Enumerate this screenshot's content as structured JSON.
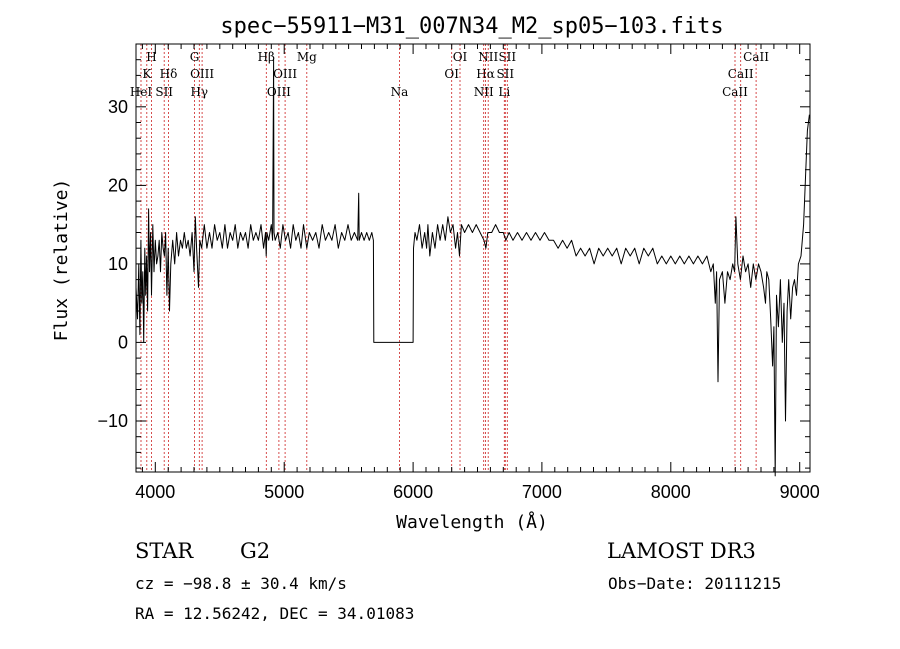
{
  "chart_data": {
    "type": "line",
    "title": "spec−55911−M31_007N34_M2_sp05−103.fits",
    "xlabel": "Wavelength (Å)",
    "ylabel": "Flux (relative)",
    "xlim": [
      3850,
      9080
    ],
    "ylim": [
      -16.5,
      38
    ],
    "x_ticks": [
      4000,
      5000,
      6000,
      7000,
      8000,
      9000
    ],
    "x_tick_labels": [
      "4000",
      "5000",
      "6000",
      "7000",
      "8000",
      "9000"
    ],
    "y_ticks": [
      -10,
      0,
      10,
      20,
      30
    ],
    "y_tick_labels": [
      "−10",
      "0",
      "10",
      "20",
      "30"
    ],
    "line_color": "#000000",
    "marker_color": "#cc2222",
    "spectral_lines": [
      {
        "label": "H",
        "wavelength": 3970,
        "row": 0
      },
      {
        "label": "K",
        "wavelength": 3934,
        "row": 1
      },
      {
        "label": "HeI",
        "wavelength": 3889,
        "row": 2
      },
      {
        "label": "SII",
        "wavelength": 4069,
        "row": 2
      },
      {
        "label": "Hδ",
        "wavelength": 4102,
        "row": 1
      },
      {
        "label": "G",
        "wavelength": 4304,
        "row": 0
      },
      {
        "label": "OIII",
        "wavelength": 4363,
        "row": 1
      },
      {
        "label": "Hγ",
        "wavelength": 4341,
        "row": 2
      },
      {
        "label": "Hβ",
        "wavelength": 4861,
        "row": 0
      },
      {
        "label": "OIII",
        "wavelength": 5007,
        "row": 1
      },
      {
        "label": "OIII",
        "wavelength": 4959,
        "row": 2
      },
      {
        "label": "Mg",
        "wavelength": 5175,
        "row": 0
      },
      {
        "label": "Na",
        "wavelength": 5894,
        "row": 2
      },
      {
        "label": "OI",
        "wavelength": 6364,
        "row": 0
      },
      {
        "label": "OI",
        "wavelength": 6300,
        "row": 1
      },
      {
        "label": "NII",
        "wavelength": 6583,
        "row": 0
      },
      {
        "label": "SII",
        "wavelength": 6731,
        "row": 0
      },
      {
        "label": "Hα",
        "wavelength": 6563,
        "row": 1
      },
      {
        "label": "SII",
        "wavelength": 6716,
        "row": 1
      },
      {
        "label": "NII",
        "wavelength": 6548,
        "row": 2
      },
      {
        "label": "Li",
        "wavelength": 6708,
        "row": 2
      },
      {
        "label": "CaII",
        "wavelength": 8662,
        "row": 0
      },
      {
        "label": "CaII",
        "wavelength": 8542,
        "row": 1
      },
      {
        "label": "CaII",
        "wavelength": 8498,
        "row": 2
      }
    ],
    "series": [
      {
        "name": "flux",
        "points": [
          [
            3850,
            7
          ],
          [
            3862,
            3
          ],
          [
            3872,
            10
          ],
          [
            3880,
            1
          ],
          [
            3888,
            13
          ],
          [
            3895,
            5
          ],
          [
            3903,
            9
          ],
          [
            3910,
            0
          ],
          [
            3918,
            12
          ],
          [
            3925,
            6
          ],
          [
            3932,
            11
          ],
          [
            3940,
            4
          ],
          [
            3948,
            17
          ],
          [
            3955,
            9
          ],
          [
            3963,
            14
          ],
          [
            3970,
            6
          ],
          [
            3980,
            15
          ],
          [
            3990,
            9
          ],
          [
            4000,
            13
          ],
          [
            4010,
            10
          ],
          [
            4020,
            11
          ],
          [
            4030,
            13
          ],
          [
            4040,
            9
          ],
          [
            4050,
            14
          ],
          [
            4060,
            12
          ],
          [
            4070,
            11
          ],
          [
            4080,
            14
          ],
          [
            4090,
            6
          ],
          [
            4100,
            12
          ],
          [
            4110,
            4
          ],
          [
            4120,
            10
          ],
          [
            4135,
            13
          ],
          [
            4150,
            10
          ],
          [
            4165,
            14
          ],
          [
            4180,
            11
          ],
          [
            4195,
            13
          ],
          [
            4210,
            12
          ],
          [
            4225,
            14
          ],
          [
            4240,
            12
          ],
          [
            4255,
            13
          ],
          [
            4270,
            11
          ],
          [
            4285,
            14
          ],
          [
            4300,
            9
          ],
          [
            4310,
            16
          ],
          [
            4320,
            12
          ],
          [
            4335,
            7
          ],
          [
            4345,
            13
          ],
          [
            4360,
            12
          ],
          [
            4380,
            15
          ],
          [
            4400,
            12
          ],
          [
            4420,
            14
          ],
          [
            4440,
            12
          ],
          [
            4460,
            15
          ],
          [
            4480,
            13
          ],
          [
            4500,
            14
          ],
          [
            4520,
            12
          ],
          [
            4540,
            15
          ],
          [
            4560,
            12
          ],
          [
            4580,
            14
          ],
          [
            4600,
            13
          ],
          [
            4620,
            15
          ],
          [
            4640,
            12
          ],
          [
            4660,
            14
          ],
          [
            4680,
            13
          ],
          [
            4700,
            14
          ],
          [
            4720,
            12
          ],
          [
            4740,
            15
          ],
          [
            4760,
            13
          ],
          [
            4780,
            14
          ],
          [
            4800,
            13
          ],
          [
            4820,
            15
          ],
          [
            4840,
            12
          ],
          [
            4855,
            14
          ],
          [
            4860,
            11
          ],
          [
            4866,
            14
          ],
          [
            4880,
            13
          ],
          [
            4900,
            15
          ],
          [
            4910,
            13
          ],
          [
            4918,
            36
          ],
          [
            4921,
            14
          ],
          [
            4930,
            13
          ],
          [
            4950,
            14
          ],
          [
            4970,
            12
          ],
          [
            4990,
            15
          ],
          [
            5010,
            13
          ],
          [
            5030,
            14
          ],
          [
            5050,
            12
          ],
          [
            5070,
            15
          ],
          [
            5090,
            13
          ],
          [
            5110,
            14
          ],
          [
            5130,
            12
          ],
          [
            5150,
            15
          ],
          [
            5175,
            12
          ],
          [
            5195,
            14
          ],
          [
            5220,
            13
          ],
          [
            5245,
            14
          ],
          [
            5270,
            12
          ],
          [
            5295,
            15
          ],
          [
            5320,
            13
          ],
          [
            5345,
            14
          ],
          [
            5370,
            13
          ],
          [
            5395,
            15
          ],
          [
            5420,
            12
          ],
          [
            5445,
            14
          ],
          [
            5470,
            13
          ],
          [
            5495,
            15
          ],
          [
            5520,
            13
          ],
          [
            5545,
            14
          ],
          [
            5570,
            13
          ],
          [
            5578,
            19
          ],
          [
            5582,
            13
          ],
          [
            5600,
            14
          ],
          [
            5620,
            13
          ],
          [
            5640,
            14
          ],
          [
            5660,
            13
          ],
          [
            5680,
            14
          ],
          [
            5692,
            13
          ],
          [
            5695,
            0
          ],
          [
            6000,
            0
          ],
          [
            6003,
            12
          ],
          [
            6015,
            14
          ],
          [
            6030,
            13
          ],
          [
            6050,
            15
          ],
          [
            6070,
            12
          ],
          [
            6090,
            14
          ],
          [
            6105,
            12
          ],
          [
            6115,
            15
          ],
          [
            6130,
            11
          ],
          [
            6150,
            14
          ],
          [
            6170,
            12
          ],
          [
            6190,
            15
          ],
          [
            6210,
            13
          ],
          [
            6230,
            15
          ],
          [
            6250,
            13
          ],
          [
            6270,
            16
          ],
          [
            6290,
            14
          ],
          [
            6310,
            15
          ],
          [
            6330,
            12
          ],
          [
            6345,
            14
          ],
          [
            6360,
            11
          ],
          [
            6375,
            15
          ],
          [
            6400,
            14
          ],
          [
            6430,
            15
          ],
          [
            6460,
            14
          ],
          [
            6490,
            15
          ],
          [
            6520,
            14
          ],
          [
            6550,
            13
          ],
          [
            6565,
            12
          ],
          [
            6580,
            14
          ],
          [
            6610,
            14
          ],
          [
            6640,
            15
          ],
          [
            6670,
            14
          ],
          [
            6700,
            14
          ],
          [
            6720,
            13
          ],
          [
            6745,
            14
          ],
          [
            6775,
            13
          ],
          [
            6810,
            14
          ],
          [
            6845,
            13
          ],
          [
            6880,
            14
          ],
          [
            6915,
            13
          ],
          [
            6950,
            14
          ],
          [
            6985,
            13
          ],
          [
            7020,
            14
          ],
          [
            7055,
            13
          ],
          [
            7090,
            13
          ],
          [
            7125,
            12
          ],
          [
            7160,
            13
          ],
          [
            7195,
            12
          ],
          [
            7230,
            13
          ],
          [
            7265,
            11
          ],
          [
            7300,
            12
          ],
          [
            7335,
            11
          ],
          [
            7370,
            12
          ],
          [
            7405,
            10
          ],
          [
            7440,
            12
          ],
          [
            7475,
            11
          ],
          [
            7510,
            12
          ],
          [
            7545,
            11
          ],
          [
            7580,
            12
          ],
          [
            7615,
            10
          ],
          [
            7650,
            12
          ],
          [
            7685,
            11
          ],
          [
            7720,
            12
          ],
          [
            7755,
            10
          ],
          [
            7790,
            12
          ],
          [
            7825,
            11
          ],
          [
            7860,
            12
          ],
          [
            7895,
            10
          ],
          [
            7930,
            11
          ],
          [
            7965,
            10
          ],
          [
            8000,
            11
          ],
          [
            8035,
            10
          ],
          [
            8070,
            11
          ],
          [
            8105,
            10
          ],
          [
            8140,
            11
          ],
          [
            8175,
            10
          ],
          [
            8210,
            11
          ],
          [
            8245,
            10
          ],
          [
            8280,
            11
          ],
          [
            8310,
            9
          ],
          [
            8330,
            10
          ],
          [
            8345,
            5
          ],
          [
            8355,
            9
          ],
          [
            8366,
            -5
          ],
          [
            8378,
            8
          ],
          [
            8400,
            9
          ],
          [
            8420,
            5
          ],
          [
            8440,
            9
          ],
          [
            8460,
            8
          ],
          [
            8480,
            10
          ],
          [
            8495,
            9
          ],
          [
            8505,
            16
          ],
          [
            8520,
            10
          ],
          [
            8540,
            8
          ],
          [
            8560,
            11
          ],
          [
            8580,
            9
          ],
          [
            8600,
            10
          ],
          [
            8620,
            7
          ],
          [
            8640,
            10
          ],
          [
            8660,
            8
          ],
          [
            8680,
            10
          ],
          [
            8700,
            9
          ],
          [
            8720,
            7
          ],
          [
            8735,
            5
          ],
          [
            8745,
            9
          ],
          [
            8760,
            8
          ],
          [
            8775,
            3
          ],
          [
            8790,
            -3
          ],
          [
            8800,
            2
          ],
          [
            8810,
            -17
          ],
          [
            8820,
            6
          ],
          [
            8835,
            2
          ],
          [
            8850,
            8
          ],
          [
            8865,
            0
          ],
          [
            8878,
            5
          ],
          [
            8890,
            -10
          ],
          [
            8902,
            4
          ],
          [
            8915,
            8
          ],
          [
            8930,
            3
          ],
          [
            8945,
            7
          ],
          [
            8960,
            8
          ],
          [
            8975,
            6
          ],
          [
            8990,
            10
          ],
          [
            9010,
            11
          ],
          [
            9030,
            15
          ],
          [
            9045,
            21
          ],
          [
            9060,
            27
          ],
          [
            9075,
            29
          ]
        ]
      }
    ]
  },
  "footer": {
    "object_class": "STAR",
    "subclass": "G2",
    "survey": "LAMOST DR3",
    "velocity": "cz = −98.8 ± 30.4 km/s",
    "obs_date": "Obs−Date: 20111215",
    "coordinates": "RA =  12.56242, DEC =  34.01083"
  }
}
